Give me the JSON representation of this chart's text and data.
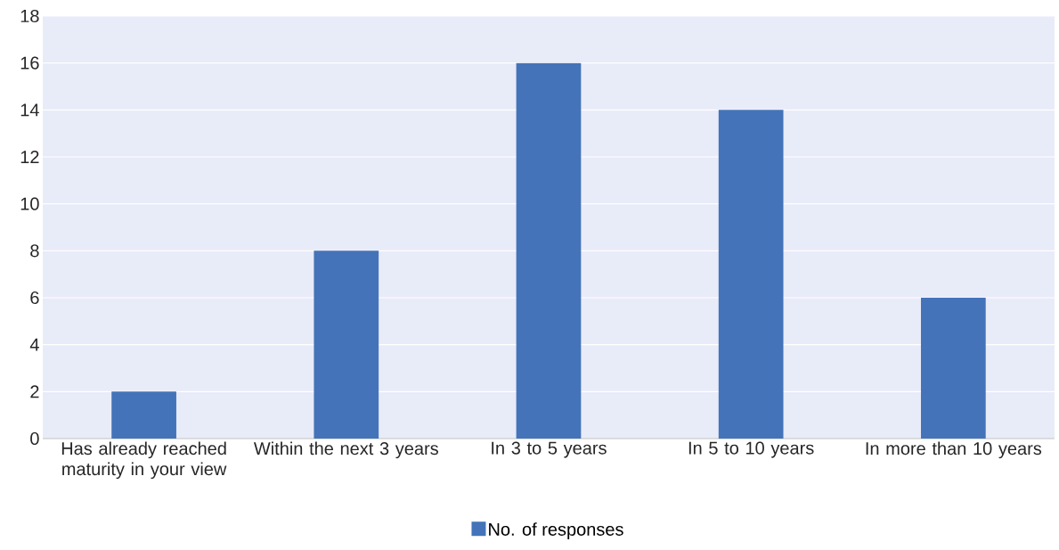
{
  "chart_data": {
    "type": "bar",
    "categories": [
      "Has already reached maturity in your view",
      "Within the next 3 years",
      "In 3 to 5 years",
      "In 5 to 10 years",
      "In more than 10 years"
    ],
    "series": [
      {
        "name": "No. of responses",
        "color": "#4473b9",
        "values": [
          2,
          8,
          16,
          14,
          6
        ]
      }
    ],
    "ylim": [
      0,
      18
    ],
    "yticks": [
      0,
      2,
      4,
      6,
      8,
      10,
      12,
      14,
      16,
      18
    ],
    "grid": "y",
    "legend": "bottom"
  }
}
